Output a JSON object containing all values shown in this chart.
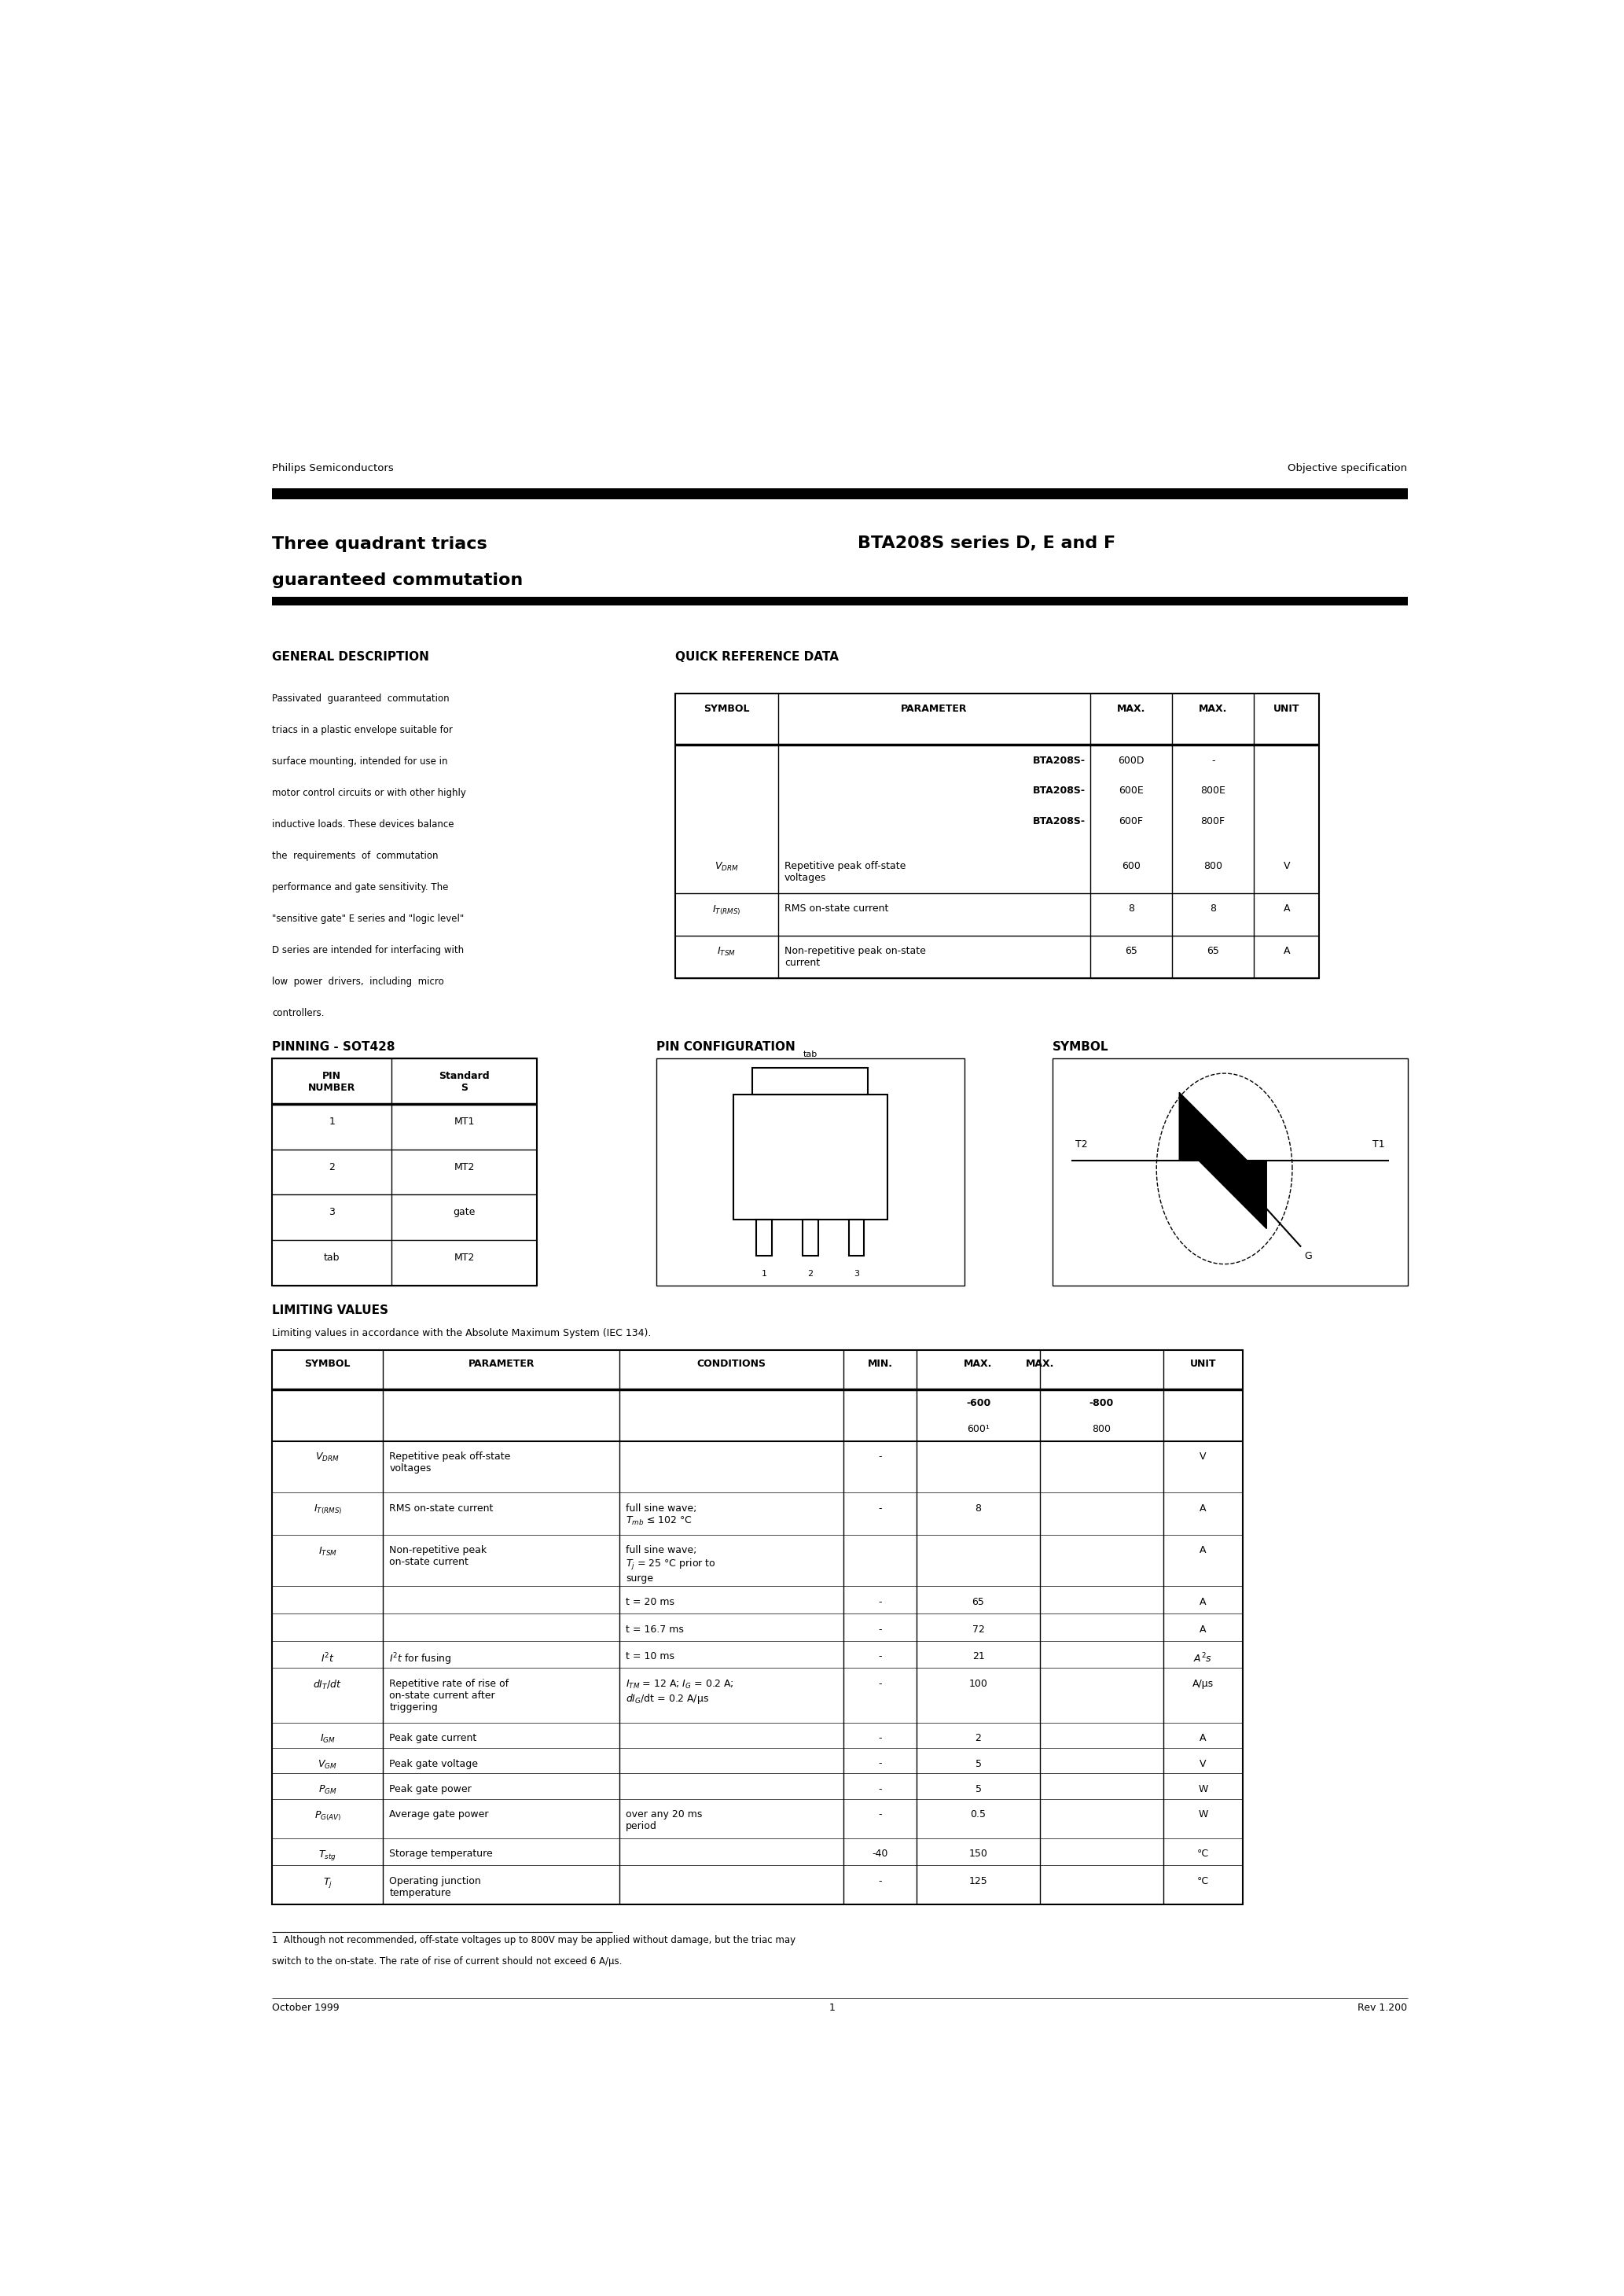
{
  "page_width": 20.66,
  "page_height": 29.2,
  "bg_color": "#ffffff",
  "header_left": "Philips Semiconductors",
  "header_right": "Objective specification",
  "title_left1": "Three quadrant triacs",
  "title_left2": "guaranteed commutation",
  "title_right": "BTA208S series D, E and F",
  "section1_title": "GENERAL DESCRIPTION",
  "section2_title": "QUICK REFERENCE DATA",
  "gen_desc_lines": [
    "Passivated  guaranteed  commutation",
    "triacs in a plastic envelope suitable for",
    "surface mounting, intended for use in",
    "motor control circuits or with other highly",
    "inductive loads. These devices balance",
    "the  requirements  of  commutation",
    "performance and gate sensitivity. The",
    "\"sensitive gate\" E series and \"logic level\"",
    "D series are intended for interfacing with",
    "low  power  drivers,  including  micro",
    "controllers."
  ],
  "pinning_title": "PINNING - SOT428",
  "pin_config_title": "PIN CONFIGURATION",
  "symbol_title": "SYMBOL",
  "limiting_title": "LIMITING VALUES",
  "limiting_subtitle": "Limiting values in accordance with the Absolute Maximum System (IEC 134).",
  "footnote1": "1  Although not recommended, off-state voltages up to 800V may be applied without damage, but the triac may",
  "footnote2": "switch to the on-state. The rate of rise of current should not exceed 6 A/μs.",
  "footer_left": "October 1999",
  "footer_center": "1",
  "footer_right": "Rev 1.200",
  "lm": 0.055,
  "rm": 0.957
}
